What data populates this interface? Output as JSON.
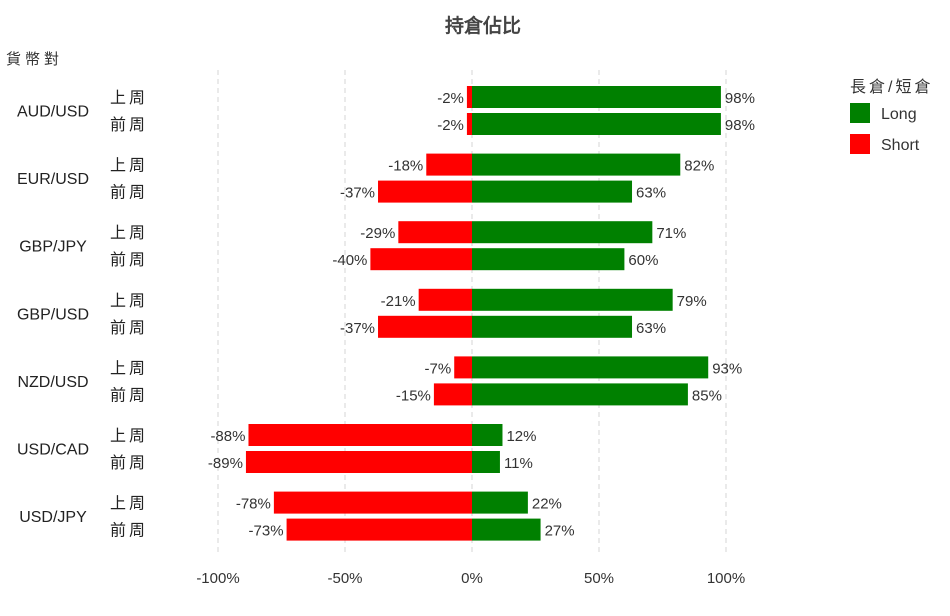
{
  "chart_data": {
    "type": "bar",
    "orientation": "horizontal",
    "stacked": "diverging",
    "title": "持倉佔比",
    "ylabel": "貨幣對",
    "xlabel": "",
    "xlim": [
      -100,
      100
    ],
    "x_ticks": [
      -100,
      -50,
      0,
      50,
      100
    ],
    "x_tick_labels": [
      "-100%",
      "-50%",
      "0%",
      "50%",
      "100%"
    ],
    "grid": true,
    "legend": {
      "title": "長倉/短倉",
      "placement": "top-right"
    },
    "periods": [
      "上周",
      "前周"
    ],
    "categories": [
      "AUD/USD",
      "EUR/USD",
      "GBP/JPY",
      "GBP/USD",
      "NZD/USD",
      "USD/CAD",
      "USD/JPY"
    ],
    "series": [
      {
        "name": "Long",
        "color": "#008000",
        "values": [
          [
            98,
            98
          ],
          [
            82,
            63
          ],
          [
            71,
            60
          ],
          [
            79,
            63
          ],
          [
            93,
            85
          ],
          [
            12,
            11
          ],
          [
            22,
            27
          ]
        ],
        "labels": [
          [
            "98%",
            "98%"
          ],
          [
            "82%",
            "63%"
          ],
          [
            "71%",
            "60%"
          ],
          [
            "79%",
            "63%"
          ],
          [
            "93%",
            "85%"
          ],
          [
            "12%",
            "11%"
          ],
          [
            "22%",
            "27%"
          ]
        ]
      },
      {
        "name": "Short",
        "color": "#ff0000",
        "values": [
          [
            -2,
            -2
          ],
          [
            -18,
            -37
          ],
          [
            -29,
            -40
          ],
          [
            -21,
            -37
          ],
          [
            -7,
            -15
          ],
          [
            -88,
            -89
          ],
          [
            -78,
            -73
          ]
        ],
        "labels": [
          [
            "-2%",
            "-2%"
          ],
          [
            "-18%",
            "-37%"
          ],
          [
            "-29%",
            "-40%"
          ],
          [
            "-21%",
            "-37%"
          ],
          [
            "-7%",
            "-15%"
          ],
          [
            "-88%",
            "-89%"
          ],
          [
            "-78%",
            "-73%"
          ]
        ]
      }
    ]
  }
}
